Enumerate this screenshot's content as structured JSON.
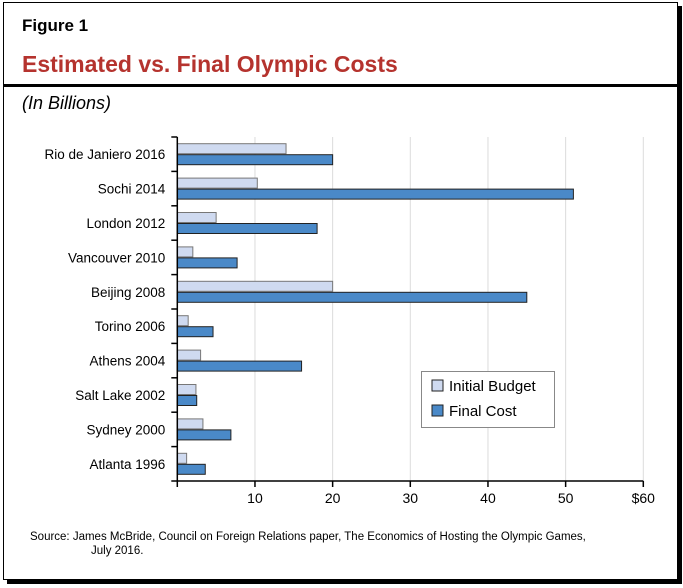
{
  "figure_label": "Figure 1",
  "title": "Estimated vs. Final Olympic Costs",
  "subtitle": "(In Billions)",
  "source_line1": "Source: James McBride, Council on Foreign Relations paper, The Economics of Hosting the Olympic Games,",
  "source_line2": "July 2016.",
  "chart_data": {
    "type": "bar",
    "orientation": "horizontal",
    "categories": [
      "Rio de Janiero 2016",
      "Sochi 2014",
      "London 2012",
      "Vancouver 2010",
      "Beijing 2008",
      "Torino 2006",
      "Athens 2004",
      "Salt Lake 2002",
      "Sydney 2000",
      "Atlanta 1996"
    ],
    "series": [
      {
        "name": "Initial Budget",
        "color": "#cfdaf0",
        "values": [
          14,
          10.3,
          5,
          2,
          20,
          1.4,
          3,
          2.4,
          3.3,
          1.2
        ]
      },
      {
        "name": "Final Cost",
        "color": "#4a89c8",
        "values": [
          20,
          51,
          18,
          7.7,
          45,
          4.6,
          16,
          2.5,
          6.9,
          3.6
        ]
      }
    ],
    "xlim": [
      0,
      60
    ],
    "xticks": [
      0,
      10,
      20,
      30,
      40,
      50,
      60
    ],
    "xtick_labels": [
      "",
      "10",
      "20",
      "30",
      "40",
      "50",
      "$60"
    ],
    "grid": true,
    "legend_position": "lower-right"
  }
}
